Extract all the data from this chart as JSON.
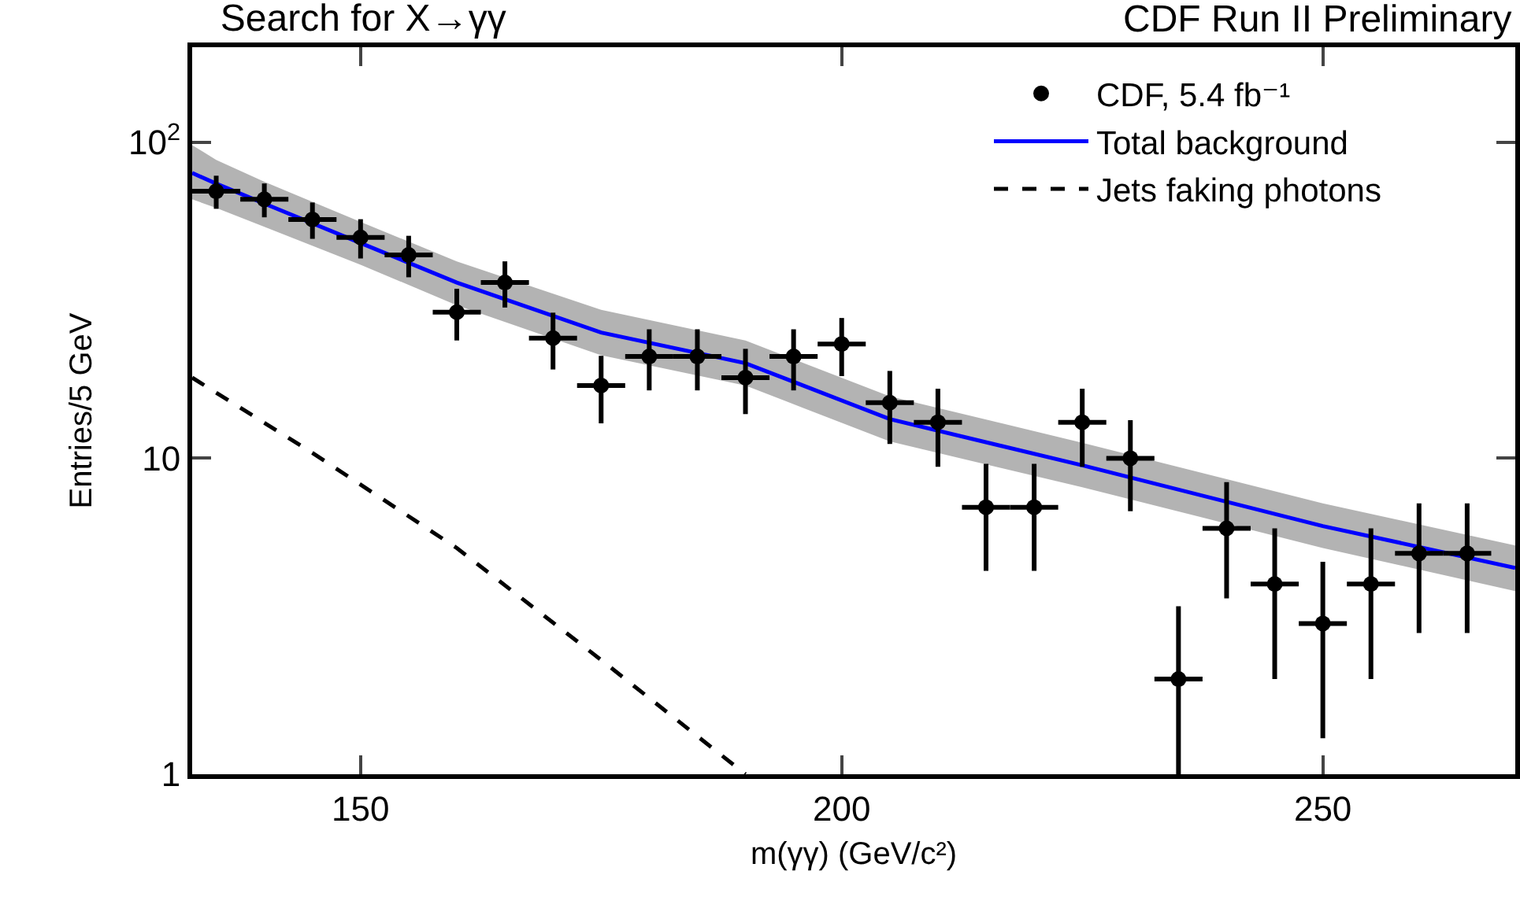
{
  "chart_data": {
    "type": "scatter",
    "title": "Search for X→γγ",
    "xlabel": "m(γγ) (GeV/c²)",
    "ylabel": "Entries/5 GeV",
    "annotations": [
      "CDF Run II Preliminary"
    ],
    "log": "y",
    "grid": false,
    "legend": "top right",
    "xlim": [
      132.5,
      270
    ],
    "xticks": [
      150,
      200,
      250
    ],
    "ylim": [
      1,
      200
    ],
    "yticks": [
      1,
      10,
      {
        "value": 100,
        "label": "10$^{2}$"
      }
    ],
    "series": [
      {
        "name": "CDF, 5.4 fb⁻¹",
        "color": "#000000",
        "marker": "circle",
        "x": [
          135,
          140,
          145,
          150,
          155,
          160,
          165,
          170,
          175,
          180,
          185,
          190,
          195,
          200,
          205,
          210,
          215,
          220,
          225,
          230,
          235,
          240,
          245,
          250,
          255,
          260,
          265
        ],
        "values": [
          70,
          66,
          57,
          50,
          44,
          29,
          36,
          24,
          17,
          21,
          21,
          18,
          21,
          23,
          15,
          13,
          7,
          7,
          13,
          10,
          2,
          6,
          4,
          3,
          4,
          5,
          5
        ],
        "errors": [
          8.4,
          8.1,
          7.5,
          7.1,
          6.6,
          5.4,
          6,
          4.9,
          4.1,
          4.6,
          4.6,
          4.2,
          4.6,
          4.8,
          3.9,
          3.6,
          2.6,
          2.6,
          3.6,
          3.2,
          [
            1,
            3.4
          ],
          2.4,
          2,
          1.7,
          2,
          2.2,
          2.2
        ],
        "xerrors": [
          2.5,
          2.5,
          2.5,
          2.5,
          2.5,
          2.5,
          2.5,
          2.5,
          2.5,
          2.5,
          2.5,
          2.5,
          2.5,
          2.5,
          2.5,
          2.5,
          2.5,
          2.5,
          2.5,
          2.5,
          2.5,
          2.5,
          2.5,
          2.5,
          2.5,
          2.5,
          2.5
        ]
      },
      {
        "name": "Total background",
        "type": "line",
        "color": "#0000ff",
        "line_style": "solid",
        "x": [
          132.5,
          135,
          140,
          150,
          160,
          175,
          190,
          205,
          225,
          250,
          270
        ],
        "values": [
          80,
          74,
          64,
          48,
          36,
          25,
          20,
          13.3,
          9.5,
          6.1,
          4.5
        ],
        "lower": [
          66,
          62,
          54,
          41,
          30.5,
          21.2,
          17,
          11.3,
          8.1,
          5.2,
          3.8
        ],
        "upper": [
          98,
          88,
          75,
          56,
          42,
          29.5,
          23.6,
          15.7,
          11.2,
          7.2,
          5.3
        ]
      },
      {
        "name": "Jets faking photons",
        "type": "line",
        "color": "#000000",
        "line_style": "dashed",
        "x": [
          132.5,
          145,
          160,
          175,
          190
        ],
        "values": [
          18,
          10.4,
          5.2,
          2.3,
          1
        ]
      }
    ]
  }
}
